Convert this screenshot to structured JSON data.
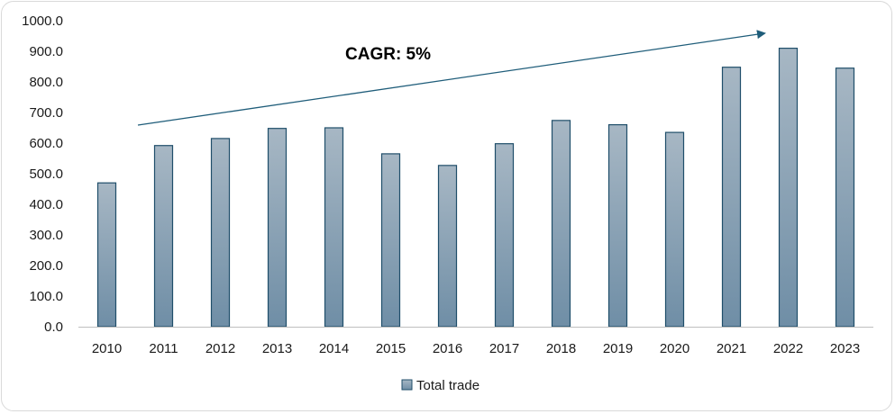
{
  "chart_data": {
    "type": "bar",
    "categories": [
      "2010",
      "2011",
      "2012",
      "2013",
      "2014",
      "2015",
      "2016",
      "2017",
      "2018",
      "2019",
      "2020",
      "2021",
      "2022",
      "2023"
    ],
    "series": [
      {
        "name": "Total trade",
        "values": [
          470,
          592,
          615,
          648,
          650,
          565,
          527,
          598,
          674,
          660,
          635,
          848,
          910,
          845
        ]
      }
    ],
    "ylim": [
      0,
      1000
    ],
    "yticks": [
      "0.0",
      "100.0",
      "200.0",
      "300.0",
      "400.0",
      "500.0",
      "600.0",
      "700.0",
      "800.0",
      "900.0",
      "1000.0"
    ],
    "grid": false,
    "legend_position": "bottom",
    "annotation": "CAGR: 5%",
    "colors": {
      "bar_top": "#a7b7c4",
      "bar_bottom": "#6f8ea6",
      "bar_edge": "#1f4e6a",
      "arrow": "#1f5d7a"
    }
  }
}
